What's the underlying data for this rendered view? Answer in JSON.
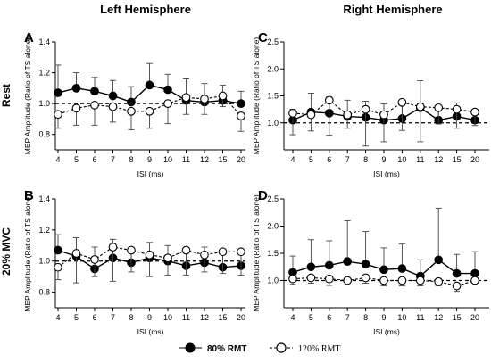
{
  "figure": {
    "col_titles": [
      "Left Hemisphere",
      "Right Hemisphere"
    ],
    "row_labels": [
      "Rest",
      "20% MVC"
    ],
    "legend": {
      "s80": "80% RMT",
      "s120": "120% RMT"
    }
  },
  "chart_data": [
    {
      "panel": "A",
      "type": "line",
      "xlabel": "ISI (ms)",
      "ylabel": "MEP Amplitude (Ratio of TS alone)",
      "categories": [
        "4",
        "5",
        "6",
        "7",
        "8",
        "9",
        "10",
        "11",
        "12",
        "15",
        "20"
      ],
      "ylim": [
        0.7,
        1.4
      ],
      "yticks": [
        0.8,
        1.0,
        1.2,
        1.4
      ],
      "yticklabels": [
        "0.8",
        "1.0",
        "1.2",
        "1.4"
      ],
      "reference_line": 1.0,
      "series": [
        {
          "name": "80% RMT",
          "values": [
            1.07,
            1.1,
            1.08,
            1.05,
            1.01,
            1.12,
            1.09,
            1.02,
            1.01,
            1.02,
            1.0
          ],
          "err": [
            0.18,
            0.1,
            0.09,
            0.1,
            0.1,
            0.14,
            0.1,
            0.14,
            0.12,
            0.1,
            0.08
          ]
        },
        {
          "name": "120% RMT",
          "values": [
            0.93,
            0.97,
            0.99,
            0.98,
            0.95,
            0.95,
            1.0,
            1.04,
            1.03,
            1.05,
            0.92
          ],
          "err": [
            0.09,
            0.11,
            0.13,
            0.1,
            0.12,
            0.11,
            0.13,
            0.11,
            0.1,
            0.07,
            0.1
          ]
        }
      ]
    },
    {
      "panel": "C",
      "type": "line",
      "xlabel": "ISI (ms)",
      "ylabel": "MEP Amplitude (Ratio of TS alone)",
      "categories": [
        "4",
        "5",
        "6",
        "7",
        "8",
        "9",
        "10",
        "11",
        "12",
        "15",
        "20"
      ],
      "ylim": [
        0.5,
        2.5
      ],
      "yticks": [
        1.0,
        1.5,
        2.0,
        2.5
      ],
      "yticklabels": [
        "1.0",
        "1.5",
        "2.0",
        "2.5"
      ],
      "reference_line": 1.0,
      "series": [
        {
          "name": "80% RMT",
          "values": [
            1.05,
            1.2,
            1.18,
            1.12,
            1.1,
            1.05,
            1.08,
            1.28,
            1.05,
            1.12,
            1.05
          ],
          "err": [
            0.2,
            0.35,
            0.3,
            0.3,
            0.3,
            0.3,
            0.3,
            0.5,
            0.25,
            0.25,
            0.2
          ]
        },
        {
          "name": "120% RMT",
          "values": [
            1.18,
            1.15,
            1.42,
            1.15,
            1.25,
            1.15,
            1.38,
            1.3,
            1.28,
            1.25,
            1.2
          ],
          "err": [
            0.4,
            0.3,
            0.65,
            0.25,
            0.68,
            0.5,
            0.52,
            0.65,
            0.3,
            0.35,
            0.25
          ]
        }
      ]
    },
    {
      "panel": "B",
      "type": "line",
      "xlabel": "ISI (ms)",
      "ylabel": "MEP Amplitude (Ratio of TS alone)",
      "categories": [
        "4",
        "5",
        "6",
        "7",
        "8",
        "9",
        "10",
        "11",
        "12",
        "15",
        "20"
      ],
      "ylim": [
        0.7,
        1.4
      ],
      "yticks": [
        0.8,
        1.0,
        1.2,
        1.4
      ],
      "yticklabels": [
        "0.8",
        "1.0",
        "1.2",
        "1.4"
      ],
      "reference_line": 1.0,
      "series": [
        {
          "name": "80% RMT",
          "values": [
            1.07,
            1.03,
            0.95,
            1.02,
            0.99,
            1.02,
            1.0,
            0.97,
            0.99,
            0.96,
            0.97
          ],
          "err": [
            0.1,
            0.12,
            0.14,
            0.12,
            0.1,
            0.1,
            0.1,
            0.1,
            0.1,
            0.1,
            0.08
          ]
        },
        {
          "name": "120% RMT",
          "values": [
            0.96,
            1.05,
            1.01,
            1.09,
            1.07,
            1.04,
            1.02,
            1.07,
            1.04,
            1.06,
            1.06
          ],
          "err": [
            0.08,
            0.19,
            0.11,
            0.22,
            0.14,
            0.14,
            0.11,
            0.16,
            0.11,
            0.14,
            0.15
          ]
        }
      ]
    },
    {
      "panel": "D",
      "type": "line",
      "xlabel": "ISI (ms)",
      "ylabel": "MEP Amplitude (Ratio of TS alone)",
      "categories": [
        "4",
        "5",
        "6",
        "7",
        "8",
        "9",
        "10",
        "11",
        "12",
        "15",
        "20"
      ],
      "ylim": [
        0.5,
        2.5
      ],
      "yticks": [
        1.0,
        1.5,
        2.0,
        2.5
      ],
      "yticklabels": [
        "1.0",
        "1.5",
        "2.0",
        "2.5"
      ],
      "reference_line": 1.0,
      "series": [
        {
          "name": "80% RMT",
          "values": [
            1.15,
            1.25,
            1.28,
            1.35,
            1.3,
            1.2,
            1.22,
            1.08,
            1.38,
            1.13,
            1.13
          ],
          "err": [
            0.3,
            0.5,
            0.45,
            0.75,
            0.6,
            0.4,
            0.45,
            0.3,
            0.95,
            0.35,
            0.4
          ]
        },
        {
          "name": "120% RMT",
          "values": [
            1.03,
            1.05,
            1.03,
            1.0,
            1.05,
            1.0,
            1.0,
            1.0,
            0.98,
            0.9,
            1.0
          ],
          "err": [
            0.1,
            0.1,
            0.12,
            0.08,
            0.1,
            0.1,
            0.1,
            0.1,
            0.08,
            0.1,
            0.08
          ]
        }
      ]
    }
  ]
}
